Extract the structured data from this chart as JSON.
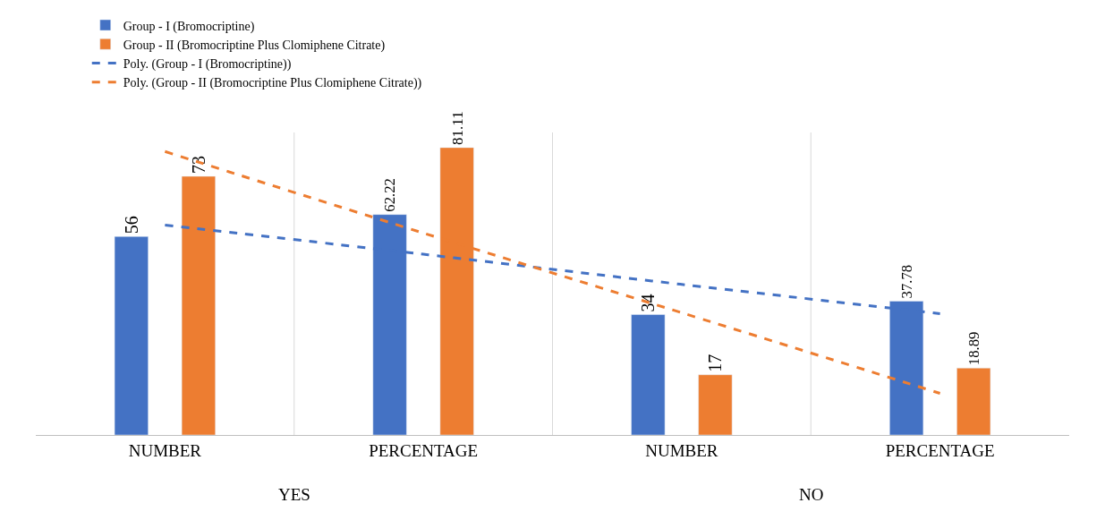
{
  "chart_data": {
    "type": "bar",
    "categories": [
      "NUMBER",
      "PERCENTAGE",
      "NUMBER",
      "PERCENTAGE"
    ],
    "series": [
      {
        "name": "Group - I (Bromocriptine)",
        "color": "#4472c4",
        "values": [
          56,
          62.22,
          34,
          37.78
        ],
        "value_labels": [
          "56",
          "62.22",
          "34",
          "37.78"
        ]
      },
      {
        "name": "Group - II (Bromocriptine Plus Clomiphene Citrate)",
        "color": "#ed7d31",
        "values": [
          73,
          81.11,
          17,
          18.89
        ],
        "value_labels": [
          "73",
          "81.11",
          "17",
          "18.89"
        ]
      },
      {
        "name": "Poly. (Group - I (Bromocriptine))",
        "type": "line",
        "line_style": "dashed",
        "color": "#4472c4",
        "values": [
          59.25,
          51,
          42.5,
          34.25
        ]
      },
      {
        "name": "Poly. (Group - II (Bromocriptine Plus Clomiphene Citrate))",
        "type": "line",
        "line_style": "dashed",
        "color": "#ed7d31",
        "values": [
          80,
          57,
          34.5,
          11.75
        ]
      }
    ],
    "annotations": [
      "YES",
      "NO"
    ],
    "grid": "x",
    "legend": "top"
  }
}
